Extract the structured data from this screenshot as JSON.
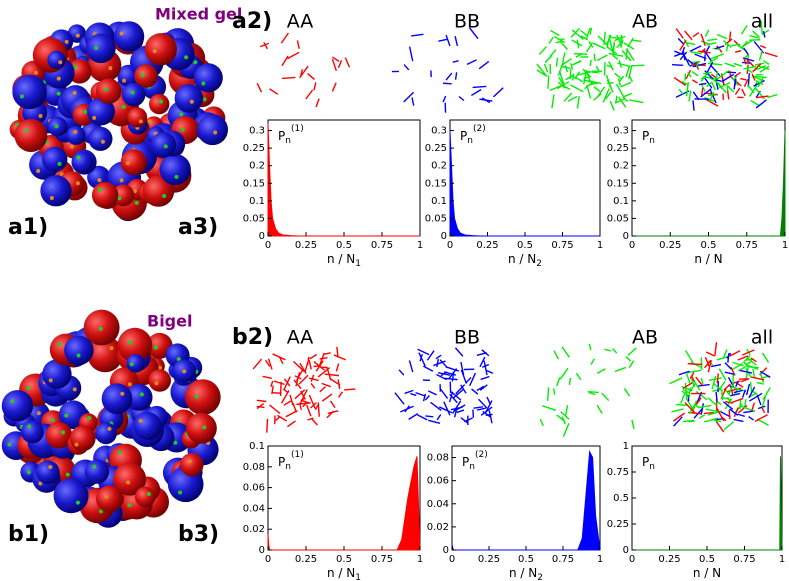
{
  "rows": [
    {
      "title": "Mixed gel",
      "label1": "a1)",
      "label2": "a2)",
      "label3": "a3)",
      "columns": [
        "AA",
        "BB",
        "AB",
        "all"
      ]
    },
    {
      "title": "Bigel",
      "label1": "b1)",
      "label2": "b2)",
      "label3": "b3)",
      "columns": [
        "AA",
        "BB",
        "AB",
        "all"
      ]
    }
  ],
  "chart_data": [
    {
      "type": "area",
      "color": "#ff0000",
      "ylabel": "P",
      "ylabel_sub": "n",
      "ylabel_sup": "(1)",
      "xlabel": "n / N",
      "xlabel_sub": "1",
      "x": [
        0,
        0.01,
        0.02,
        0.03,
        0.05,
        0.07,
        0.1,
        0.15,
        0.2,
        1
      ],
      "values": [
        0.32,
        0.2,
        0.1,
        0.05,
        0.02,
        0.008,
        0.003,
        0.001,
        0,
        0
      ],
      "xlim": [
        0,
        1
      ],
      "ylim": [
        0,
        0.33
      ],
      "xticks": [
        0,
        0.25,
        0.5,
        0.75,
        1
      ],
      "yticks": [
        0,
        0.05,
        0.1,
        0.15,
        0.2,
        0.25,
        0.3
      ]
    },
    {
      "type": "area",
      "color": "#0000ff",
      "ylabel": "P",
      "ylabel_sub": "n",
      "ylabel_sup": "(2)",
      "xlabel": "n / N",
      "xlabel_sub": "2",
      "x": [
        0,
        0.01,
        0.02,
        0.03,
        0.05,
        0.07,
        0.1,
        0.15,
        0.2,
        1
      ],
      "values": [
        0.3,
        0.2,
        0.1,
        0.05,
        0.02,
        0.008,
        0.003,
        0.001,
        0,
        0
      ],
      "xlim": [
        0,
        1
      ],
      "ylim": [
        0,
        0.33
      ],
      "xticks": [
        0,
        0.25,
        0.5,
        0.75,
        1
      ],
      "yticks": [
        0,
        0.05,
        0.1,
        0.15,
        0.2,
        0.25,
        0.3
      ]
    },
    {
      "type": "area",
      "color": "#008000",
      "ylabel": "P",
      "ylabel_sub": "n",
      "xlabel": "n / N",
      "x": [
        0,
        0.97,
        0.98,
        0.99,
        1
      ],
      "values": [
        0,
        0,
        0.05,
        0.15,
        0.3
      ],
      "xlim": [
        0,
        1
      ],
      "ylim": [
        0,
        0.33
      ],
      "xticks": [
        0,
        0.25,
        0.5,
        0.75,
        1
      ],
      "yticks": [
        0,
        0.05,
        0.1,
        0.15,
        0.2,
        0.25,
        0.3
      ]
    },
    {
      "type": "area",
      "color": "#ff0000",
      "ylabel": "P",
      "ylabel_sub": "n",
      "ylabel_sup": "(1)",
      "xlabel": "n / N",
      "xlabel_sub": "1",
      "x": [
        0,
        0.005,
        0.01,
        0.85,
        0.88,
        0.9,
        0.92,
        0.94,
        0.96,
        0.98,
        1
      ],
      "values": [
        0.015,
        0.005,
        0,
        0,
        0.01,
        0.03,
        0.05,
        0.065,
        0.08,
        0.09,
        0
      ],
      "xlim": [
        0,
        1
      ],
      "ylim": [
        0,
        0.1
      ],
      "xticks": [
        0,
        0.25,
        0.5,
        0.75,
        1
      ],
      "yticks": [
        0,
        0.02,
        0.04,
        0.06,
        0.08,
        0.1
      ]
    },
    {
      "type": "area",
      "color": "#0000ff",
      "ylabel": "P",
      "ylabel_sub": "n",
      "ylabel_sup": "(2)",
      "xlabel": "n / N",
      "xlabel_sub": "2",
      "x": [
        0,
        0.005,
        0.01,
        0.85,
        0.88,
        0.9,
        0.92,
        0.93,
        0.95,
        0.97,
        1
      ],
      "values": [
        0.005,
        0.002,
        0,
        0,
        0.01,
        0.04,
        0.07,
        0.085,
        0.08,
        0.03,
        0
      ],
      "xlim": [
        0,
        1
      ],
      "ylim": [
        0,
        0.09
      ],
      "xticks": [
        0,
        0.25,
        0.5,
        0.75,
        1
      ],
      "yticks": [
        0,
        0.02,
        0.04,
        0.06,
        0.08
      ]
    },
    {
      "type": "area",
      "color": "#008000",
      "ylabel": "P",
      "ylabel_sub": "n",
      "xlabel": "n / N",
      "x": [
        0,
        0.985,
        0.99,
        1
      ],
      "values": [
        0,
        0,
        0.9,
        0
      ],
      "xlim": [
        0,
        1
      ],
      "ylim": [
        0,
        1
      ],
      "xticks": [
        0,
        0.25,
        0.5,
        0.75,
        1
      ],
      "yticks": [
        0,
        0.25,
        0.5,
        0.75,
        1
      ]
    }
  ]
}
